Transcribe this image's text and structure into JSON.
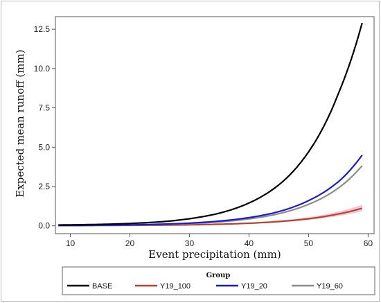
{
  "chart_data": {
    "type": "line",
    "xlabel": "Event precipitation (mm)",
    "ylabel": "Expected mean runoff (mm)",
    "xlim": [
      7.5,
      61
    ],
    "ylim": [
      -0.5,
      13.3
    ],
    "xticks": [
      10,
      20,
      30,
      40,
      50,
      60
    ],
    "yticks": [
      0.0,
      2.5,
      5.0,
      7.5,
      10.0,
      12.5
    ],
    "xtick_labels": [
      "10",
      "20",
      "30",
      "40",
      "50",
      "60"
    ],
    "ytick_labels": [
      "0.0",
      "2.5",
      "5.0",
      "7.5",
      "10.0",
      "12.5"
    ],
    "legend": {
      "title": "Group",
      "placement": "bottom"
    },
    "grid": false,
    "series": [
      {
        "name": "BASE",
        "color": "#000000",
        "x": [
          8,
          10,
          15,
          20,
          25,
          30,
          35,
          40,
          45,
          50,
          55,
          59
        ],
        "y": [
          0.05,
          0.06,
          0.09,
          0.15,
          0.25,
          0.45,
          0.8,
          1.45,
          2.6,
          4.7,
          8.4,
          12.9
        ]
      },
      {
        "name": "Y19_100",
        "color": "#b5442f",
        "band_color": "#f3a6b8",
        "x": [
          8,
          10,
          15,
          20,
          25,
          30,
          35,
          40,
          45,
          50,
          55,
          59
        ],
        "y": [
          0.01,
          0.01,
          0.02,
          0.03,
          0.04,
          0.06,
          0.1,
          0.16,
          0.27,
          0.45,
          0.75,
          1.12
        ]
      },
      {
        "name": "Y19_20",
        "color": "#1a1ad6",
        "x": [
          8,
          10,
          15,
          20,
          25,
          30,
          35,
          40,
          45,
          50,
          55,
          59
        ],
        "y": [
          0.02,
          0.02,
          0.04,
          0.06,
          0.1,
          0.17,
          0.3,
          0.52,
          0.9,
          1.6,
          2.8,
          4.5
        ]
      },
      {
        "name": "Y19_60",
        "color": "#8c8c8c",
        "x": [
          8,
          10,
          15,
          20,
          25,
          30,
          35,
          40,
          45,
          50,
          55,
          59
        ],
        "y": [
          0.02,
          0.02,
          0.03,
          0.05,
          0.08,
          0.14,
          0.25,
          0.44,
          0.77,
          1.36,
          2.4,
          3.82
        ]
      }
    ]
  }
}
